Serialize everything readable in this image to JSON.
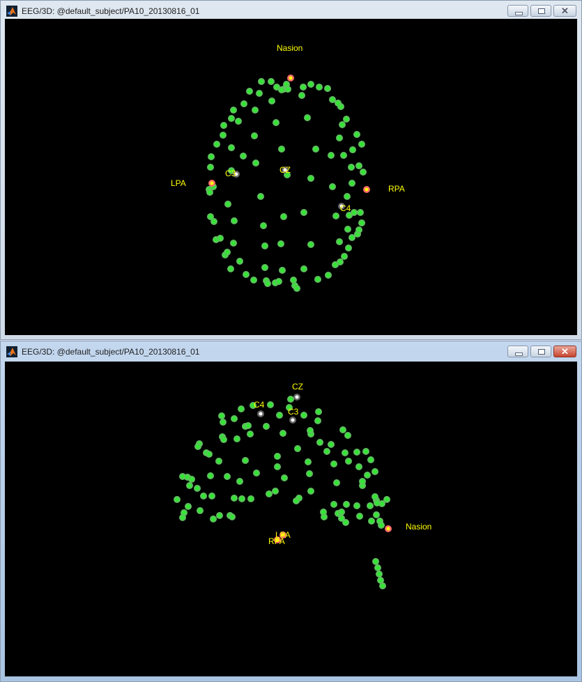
{
  "windows": [
    {
      "title": "EEG/3D: @default_subject/PA10_20130816_01",
      "state": "inactive",
      "fiducials": {
        "nasion": "Nasion",
        "lpa": "LPA",
        "rpa": "RPA"
      },
      "electrodes": {
        "c3": "C3",
        "cz": "CZ",
        "c4": "C4"
      }
    },
    {
      "title": "EEG/3D: @default_subject/PA10_20130816_01",
      "state": "active",
      "fiducials": {
        "nasion": "Nasion",
        "lpa": "LPA",
        "rpa": "RPA"
      },
      "electrodes": {
        "c3": "C3",
        "cz": "CZ",
        "c4": "C4"
      }
    }
  ],
  "controls": {
    "minimize": "minimize",
    "maximize": "maximize",
    "close": "close"
  },
  "colors": {
    "background": "#000000",
    "sensor": "#4cd24c",
    "fiducial": "#ff6b6b",
    "selected_sensor": "#ffffff",
    "label": "#ffff00"
  }
}
